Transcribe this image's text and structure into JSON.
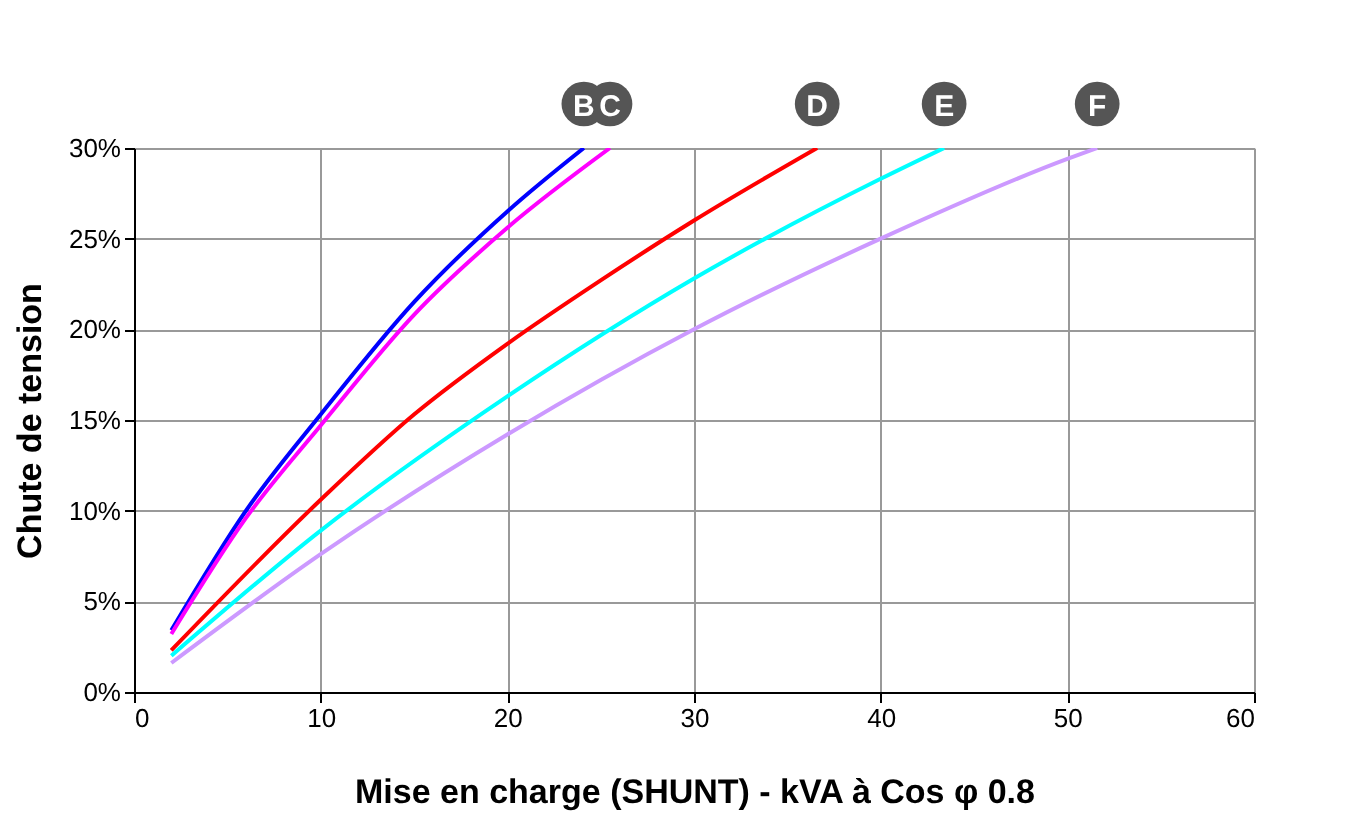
{
  "chart_data": {
    "type": "line",
    "xlabel": "Mise en charge (SHUNT) - kVA à Cos φ 0.8",
    "ylabel": "Chute de tension",
    "xlim": [
      0,
      60
    ],
    "xticks": [
      0,
      10,
      20,
      30,
      40,
      50,
      60
    ],
    "ylim": [
      0,
      30
    ],
    "yticks": [
      {
        "value": 0,
        "label": "0%"
      },
      {
        "value": 5,
        "label": "5%"
      },
      {
        "value": 10,
        "label": "10%"
      },
      {
        "value": 15,
        "label": "15%"
      },
      {
        "value": 20,
        "label": "20%"
      },
      {
        "value": 25,
        "label": "25%"
      },
      {
        "value": 30,
        "label": "30%"
      }
    ],
    "grid": true,
    "marker": "none",
    "line_style": "solid",
    "series": [
      {
        "name": "B",
        "color": "#0000ff",
        "x": [
          2,
          6,
          10,
          15,
          20,
          24.1
        ],
        "values": [
          3.4,
          10,
          15.3,
          21.5,
          26.5,
          30
        ]
      },
      {
        "name": "C",
        "color": "#ff00ff",
        "x": [
          2,
          6,
          10,
          15,
          20,
          25.5
        ],
        "values": [
          3.2,
          9.6,
          14.7,
          20.8,
          25.6,
          30
        ]
      },
      {
        "name": "D",
        "color": "#ff0000",
        "x": [
          2,
          10,
          15,
          20,
          25,
          30,
          36.6
        ],
        "values": [
          2.3,
          10.6,
          15.3,
          19.2,
          22.7,
          26,
          30
        ]
      },
      {
        "name": "E",
        "color": "#00ffff",
        "x": [
          2,
          10,
          20,
          30,
          40,
          43.4
        ],
        "values": [
          2.0,
          8.9,
          16.3,
          22.8,
          28.3,
          30
        ]
      },
      {
        "name": "F",
        "color": "#cc99ff",
        "x": [
          2,
          10,
          20,
          30,
          40,
          50,
          51.6
        ],
        "values": [
          1.6,
          7.6,
          14.2,
          20,
          25,
          29.4,
          30
        ]
      }
    ]
  }
}
